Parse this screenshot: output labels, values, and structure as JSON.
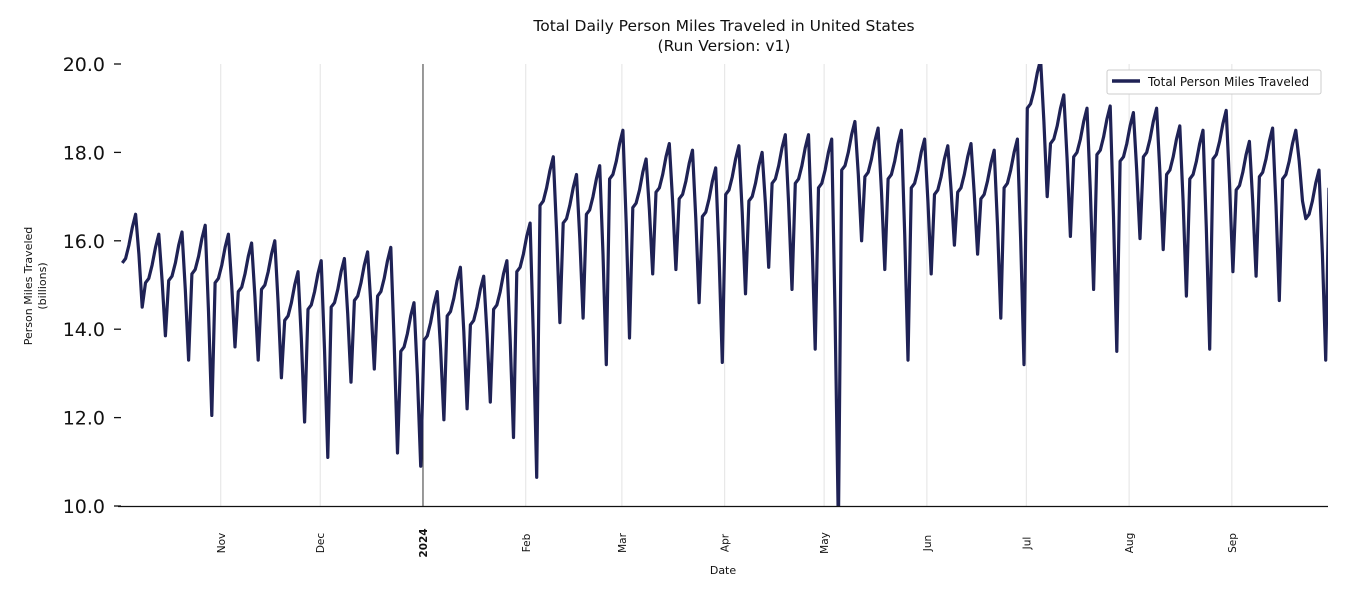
{
  "chart_data": {
    "type": "line",
    "title": "Total Daily Person Miles Traveled in United States",
    "subtitle": "(Run Version: v1)",
    "xlabel": "Date",
    "ylabel": "Person Miles Traveled",
    "ylabel_unit": "(billions)",
    "x_start": "2023-10-01",
    "x_frequency": "daily",
    "ylim": [
      10,
      20
    ],
    "yticks": [
      10,
      12,
      14,
      16,
      18,
      20
    ],
    "ytick_labels": [
      "10.0",
      "12.0",
      "14.0",
      "16.0",
      "18.0",
      "20.0"
    ],
    "xticks": [
      {
        "label": "Nov",
        "day": 31,
        "bold": false
      },
      {
        "label": "Dec",
        "day": 61,
        "bold": false
      },
      {
        "label": "2024",
        "day": 92,
        "bold": true
      },
      {
        "label": "Feb",
        "day": 123,
        "bold": false
      },
      {
        "label": "Mar",
        "day": 152,
        "bold": false
      },
      {
        "label": "Apr",
        "day": 183,
        "bold": false
      },
      {
        "label": "May",
        "day": 213,
        "bold": false
      },
      {
        "label": "Jun",
        "day": 244,
        "bold": false
      },
      {
        "label": "Jul",
        "day": 274,
        "bold": false
      },
      {
        "label": "Aug",
        "day": 305,
        "bold": false
      },
      {
        "label": "Sep",
        "day": 336,
        "bold": false
      }
    ],
    "xlim_days": [
      0,
      365
    ],
    "grid": "vertical",
    "legend_position": "top-right",
    "series": [
      {
        "name": "Total Person Miles Traveled",
        "color": "#1f2255",
        "values": [
          15.5,
          15.6,
          15.9,
          16.3,
          16.6,
          15.7,
          14.5,
          15.05,
          15.15,
          15.45,
          15.85,
          16.15,
          15.1,
          13.85,
          15.1,
          15.2,
          15.5,
          15.9,
          16.2,
          14.9,
          13.3,
          15.25,
          15.35,
          15.65,
          16.05,
          16.35,
          14.4,
          12.05,
          15.05,
          15.15,
          15.45,
          15.85,
          16.15,
          15.0,
          13.6,
          14.85,
          14.95,
          15.25,
          15.65,
          15.95,
          14.75,
          13.3,
          14.9,
          15.0,
          15.3,
          15.7,
          16.0,
          14.6,
          12.9,
          14.2,
          14.3,
          14.6,
          15.0,
          15.3,
          13.8,
          11.9,
          14.45,
          14.55,
          14.85,
          15.25,
          15.55,
          13.55,
          11.1,
          14.5,
          14.6,
          14.9,
          15.3,
          15.6,
          14.35,
          12.8,
          14.65,
          14.75,
          15.05,
          15.45,
          15.75,
          14.55,
          13.1,
          14.75,
          14.85,
          15.15,
          15.55,
          15.85,
          13.75,
          11.2,
          13.5,
          13.6,
          13.9,
          14.3,
          14.6,
          12.95,
          10.9,
          13.75,
          13.85,
          14.15,
          14.55,
          14.85,
          13.55,
          11.95,
          14.3,
          14.4,
          14.7,
          15.1,
          15.4,
          13.95,
          12.2,
          14.1,
          14.2,
          14.5,
          14.9,
          15.2,
          13.9,
          12.35,
          14.45,
          14.55,
          14.85,
          15.25,
          15.55,
          13.75,
          11.55,
          15.3,
          15.4,
          15.7,
          16.1,
          16.4,
          13.8,
          10.65,
          16.8,
          16.9,
          17.2,
          17.6,
          17.9,
          16.2,
          14.15,
          16.4,
          16.5,
          16.8,
          17.2,
          17.5,
          16.05,
          14.25,
          16.6,
          16.7,
          17.0,
          17.4,
          17.7,
          15.7,
          13.2,
          17.4,
          17.5,
          17.8,
          18.2,
          18.5,
          16.4,
          13.8,
          16.75,
          16.85,
          17.15,
          17.55,
          17.85,
          16.7,
          15.25,
          17.1,
          17.2,
          17.5,
          17.9,
          18.2,
          16.9,
          15.35,
          16.95,
          17.05,
          17.35,
          17.75,
          18.05,
          16.5,
          14.6,
          16.55,
          16.65,
          16.95,
          17.35,
          17.65,
          15.7,
          13.25,
          17.05,
          17.15,
          17.45,
          17.85,
          18.15,
          16.65,
          14.8,
          16.9,
          17.0,
          17.3,
          17.7,
          18.0,
          16.85,
          15.4,
          17.3,
          17.4,
          17.7,
          18.1,
          18.4,
          16.85,
          14.9,
          17.3,
          17.4,
          17.7,
          18.1,
          18.4,
          16.2,
          13.55,
          17.2,
          17.3,
          17.6,
          18.0,
          18.3,
          14.4,
          9.5,
          17.6,
          17.7,
          18.0,
          18.4,
          18.7,
          17.5,
          16.0,
          17.45,
          17.55,
          17.85,
          18.25,
          18.55,
          17.1,
          15.35,
          17.4,
          17.5,
          17.8,
          18.2,
          18.5,
          16.15,
          13.3,
          17.2,
          17.3,
          17.6,
          18.0,
          18.3,
          16.9,
          15.25,
          17.05,
          17.15,
          17.45,
          17.85,
          18.15,
          17.15,
          15.9,
          17.1,
          17.2,
          17.5,
          17.9,
          18.2,
          17.05,
          15.7,
          16.95,
          17.05,
          17.35,
          17.75,
          18.05,
          16.35,
          14.25,
          17.2,
          17.3,
          17.6,
          18.0,
          18.3,
          16.0,
          13.2,
          19.0,
          19.1,
          19.4,
          19.8,
          20.1,
          18.7,
          17.0,
          18.2,
          18.3,
          18.6,
          19.0,
          19.3,
          17.85,
          16.1,
          17.9,
          18.0,
          18.3,
          18.7,
          19.0,
          17.15,
          14.9,
          17.95,
          18.05,
          18.35,
          18.75,
          19.05,
          16.55,
          13.5,
          17.8,
          17.9,
          18.2,
          18.6,
          18.9,
          17.6,
          16.05,
          17.9,
          18.0,
          18.3,
          18.7,
          19.0,
          17.55,
          15.8,
          17.5,
          17.6,
          17.9,
          18.3,
          18.6,
          16.9,
          14.75,
          17.4,
          17.5,
          17.8,
          18.2,
          18.5,
          16.3,
          13.55,
          17.85,
          17.95,
          18.25,
          18.65,
          18.95,
          17.3,
          15.3,
          17.15,
          17.25,
          17.55,
          17.95,
          18.25,
          16.9,
          15.2,
          17.45,
          17.55,
          17.85,
          18.25,
          18.55,
          16.8,
          14.65,
          17.4,
          17.5,
          17.8,
          18.2,
          18.5,
          17.8,
          16.9,
          16.5,
          16.6,
          16.9,
          17.3,
          17.6,
          15.7,
          13.3,
          17.2
        ]
      }
    ]
  }
}
